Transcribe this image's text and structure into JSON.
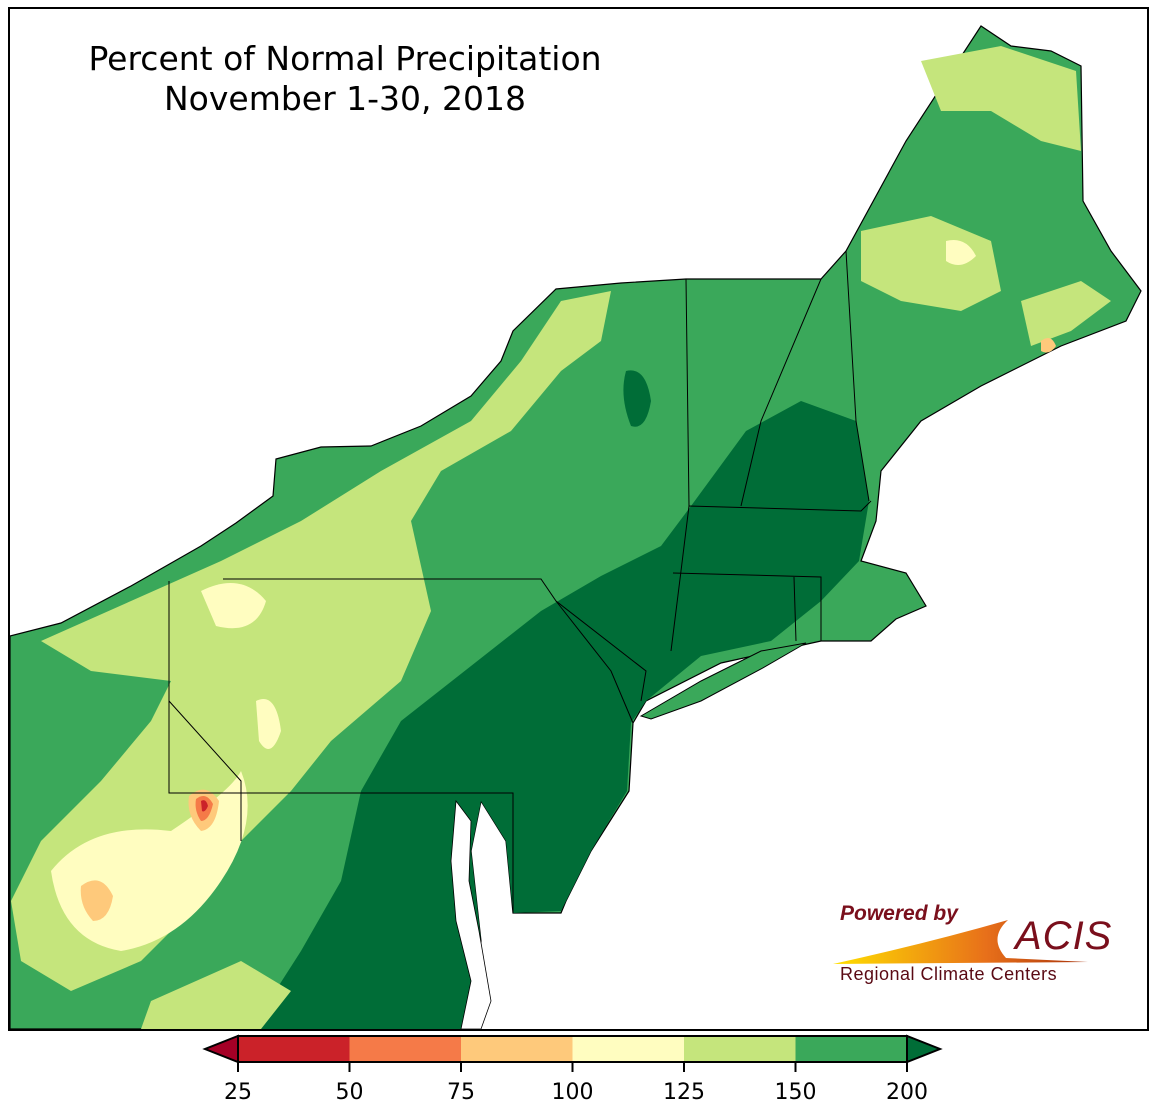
{
  "title": {
    "line1": "Percent of Normal Precipitation",
    "line2": "November 1-30, 2018"
  },
  "legend": {
    "tick_labels": [
      "25",
      "50",
      "75",
      "100",
      "125",
      "150",
      "200"
    ],
    "classes": [
      {
        "range": "<25",
        "color": "#a50026"
      },
      {
        "range": "25-50",
        "color": "#cb2229"
      },
      {
        "range": "50-75",
        "color": "#f57a48"
      },
      {
        "range": "75-100",
        "color": "#fec97b"
      },
      {
        "range": "100-125",
        "color": "#fffdc0"
      },
      {
        "range": "125-150",
        "color": "#c5e57c"
      },
      {
        "range": "150-200",
        "color": "#3aa85a"
      },
      {
        "range": ">200",
        "color": "#006d37"
      }
    ]
  },
  "logo": {
    "powered_by": "Powered by",
    "acis": "ACIS",
    "subtitle": "Regional Climate Centers"
  }
}
